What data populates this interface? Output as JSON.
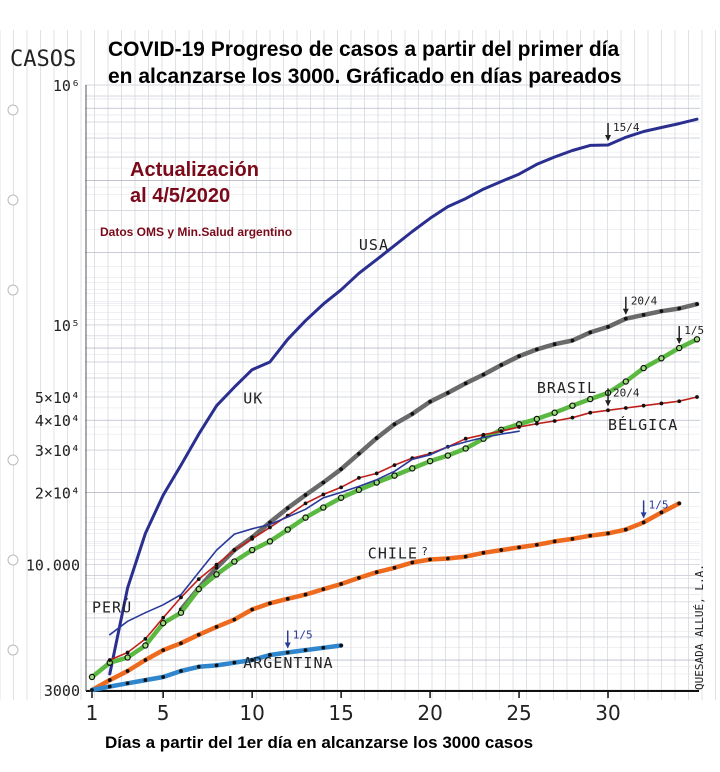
{
  "chart_data": {
    "type": "line",
    "title_line1": "COVID-19 Progreso de casos a partir del primer día",
    "title_line2": "en alcanzarse los 3000. Gráficado en días pareados",
    "update_line1": "Actualización",
    "update_line2": "al 4/5/2020",
    "source": "Datos OMS y Min.Salud argentino",
    "ylabel": "CASOS",
    "xlabel": "Días a partir del 1er día en alcanzarse los 3000 casos",
    "signature": "QUESADA ALLUÉ, L.A.",
    "xlim": [
      1,
      35
    ],
    "ylim": [
      3000,
      1000000
    ],
    "yscale": "log",
    "grid": true,
    "x_ticks": [
      "1",
      "5",
      "10",
      "15",
      "20",
      "25",
      "30"
    ],
    "x_tick_values": [
      1,
      5,
      10,
      15,
      20,
      25,
      30
    ],
    "y_ticks": [
      {
        "label": "3000",
        "value": 3000
      },
      {
        "label": "10.000",
        "value": 10000
      },
      {
        "label": "2×10⁴",
        "value": 20000
      },
      {
        "label": "3×10⁴",
        "value": 30000
      },
      {
        "label": "4×10⁴",
        "value": 40000
      },
      {
        "label": "5×10⁴",
        "value": 50000
      },
      {
        "label": "10⁵",
        "value": 100000
      },
      {
        "label": "10⁶",
        "value": 1000000
      }
    ],
    "series": [
      {
        "name": "USA",
        "color": "#2a2f8f",
        "marker": "none",
        "dashed": false,
        "x": [
          2,
          3,
          4,
          5,
          6,
          7,
          8,
          9,
          10,
          11,
          12,
          13,
          14,
          15,
          16,
          17,
          18,
          19,
          20,
          21,
          22,
          23,
          24,
          25,
          26,
          27,
          28,
          29,
          30,
          31,
          32,
          33,
          34,
          35
        ],
        "y": [
          3500,
          8000,
          13500,
          19500,
          26000,
          35000,
          46000,
          55000,
          65000,
          70000,
          87000,
          104000,
          122000,
          140000,
          164000,
          187000,
          214000,
          245000,
          278000,
          311000,
          336000,
          368000,
          396000,
          425000,
          467000,
          501000,
          533000,
          560000,
          562000,
          605000,
          640000,
          665000,
          690000,
          720000
        ]
      },
      {
        "name": "UK",
        "color": "#6a6a6a",
        "marker": "dot",
        "dashed": false,
        "x": [
          6,
          7,
          8,
          9,
          10,
          11,
          12,
          13,
          14,
          15,
          16,
          17,
          18,
          19,
          20,
          21,
          22,
          23,
          24,
          25,
          26,
          27,
          28,
          29,
          30,
          31,
          32,
          33,
          34,
          35
        ],
        "y": [
          6500,
          8000,
          9700,
          11500,
          13000,
          15000,
          17200,
          19500,
          22000,
          25000,
          29000,
          33700,
          38500,
          42500,
          47800,
          52000,
          57000,
          62000,
          68000,
          74000,
          79000,
          83000,
          86000,
          93000,
          98000,
          106000,
          110000,
          114000,
          117000,
          122000
        ]
      },
      {
        "name": "BRASIL",
        "color": "#5bb841",
        "marker": "ring",
        "dashed": false,
        "x": [
          1,
          2,
          3,
          4,
          5,
          6,
          7,
          8,
          9,
          10,
          11,
          12,
          13,
          14,
          15,
          16,
          17,
          18,
          19,
          20,
          21,
          22,
          23,
          24,
          25,
          26,
          27,
          28,
          29,
          30,
          31,
          32,
          33,
          34,
          35
        ],
        "y": [
          3400,
          3900,
          4100,
          4600,
          5700,
          6300,
          7900,
          9100,
          10300,
          11500,
          12500,
          14000,
          15700,
          17300,
          19000,
          20500,
          22000,
          23500,
          25200,
          27000,
          28500,
          30500,
          33500,
          36500,
          38500,
          40500,
          43000,
          46000,
          49000,
          52000,
          58000,
          66000,
          72500,
          80000,
          87000
        ]
      },
      {
        "name": "BÉLGICA",
        "color": "#c0201a",
        "marker": "dot",
        "dashed": false,
        "x": [
          2,
          3,
          4,
          5,
          6,
          7,
          8,
          9,
          10,
          11,
          12,
          13,
          14,
          15,
          16,
          17,
          18,
          19,
          20,
          21,
          22,
          23,
          24,
          25,
          26,
          27,
          28,
          29,
          30,
          31,
          32,
          33,
          34,
          35
        ],
        "y": [
          4000,
          4300,
          4900,
          6000,
          7300,
          8700,
          10000,
          11500,
          12800,
          14300,
          16000,
          18000,
          19600,
          21000,
          23000,
          24000,
          26000,
          27800,
          29000,
          31000,
          33500,
          34800,
          36000,
          37500,
          38700,
          39700,
          41000,
          43000,
          44000,
          45000,
          46000,
          47000,
          48000,
          50000
        ]
      },
      {
        "name": "PERÚ",
        "color": "#2a3a9a",
        "marker": "none",
        "dashed": false,
        "x": [
          2,
          3,
          4,
          5,
          6,
          7,
          8,
          9,
          10,
          11,
          12,
          13,
          14,
          15,
          16,
          17,
          18,
          19,
          20,
          21,
          22,
          23,
          24,
          25
        ],
        "y": [
          5100,
          5800,
          6300,
          6800,
          7500,
          9300,
          11500,
          13400,
          14100,
          14700,
          15800,
          17000,
          19000,
          20000,
          21200,
          22600,
          24500,
          27500,
          28700,
          31000,
          32500,
          33900,
          35000,
          36000
        ]
      },
      {
        "name": "CHILE",
        "color": "#ee6a1e",
        "marker": "dot",
        "dashed": false,
        "x": [
          1,
          2,
          3,
          4,
          5,
          6,
          7,
          8,
          9,
          10,
          11,
          12,
          13,
          14,
          15,
          16,
          17,
          18,
          19,
          20,
          21,
          22,
          23,
          24,
          25,
          26,
          27,
          28,
          29,
          30,
          31,
          32,
          33,
          34
        ],
        "y": [
          3000,
          3300,
          3600,
          4000,
          4400,
          4700,
          5100,
          5500,
          5900,
          6500,
          6900,
          7200,
          7500,
          7900,
          8300,
          8800,
          9300,
          9700,
          10200,
          10500,
          10600,
          10800,
          11200,
          11500,
          11800,
          12100,
          12500,
          12800,
          13200,
          13500,
          14000,
          15000,
          16500,
          18000
        ]
      },
      {
        "name": "ARGENTINA",
        "color": "#2f86cc",
        "marker": "dot",
        "dashed": false,
        "x": [
          1,
          2,
          3,
          4,
          5,
          6,
          7,
          8,
          9,
          10,
          11,
          12,
          13,
          14,
          15
        ],
        "y": [
          3000,
          3100,
          3200,
          3300,
          3400,
          3600,
          3750,
          3800,
          3900,
          4000,
          4200,
          4300,
          4400,
          4500,
          4600
        ]
      }
    ],
    "annotations": [
      {
        "text": "15/4",
        "series": "USA",
        "x": 30,
        "color": "#222"
      },
      {
        "text": "20/4",
        "series": "UK",
        "x": 31,
        "color": "#222"
      },
      {
        "text": "1/5",
        "series": "BRASIL",
        "x": 34,
        "color": "#222"
      },
      {
        "text": "20/4",
        "series": "BÉLGICA",
        "x": 30,
        "color": "#222"
      },
      {
        "text": "1/5",
        "series": "CHILE",
        "x": 32,
        "color": "#2a3a9a"
      },
      {
        "text": "1/5",
        "series": "ARGENTINA",
        "x": 12,
        "color": "#2a3a9a"
      },
      {
        "text": "?",
        "series": "CHILE",
        "x": 19.5,
        "color": "#222"
      }
    ]
  }
}
